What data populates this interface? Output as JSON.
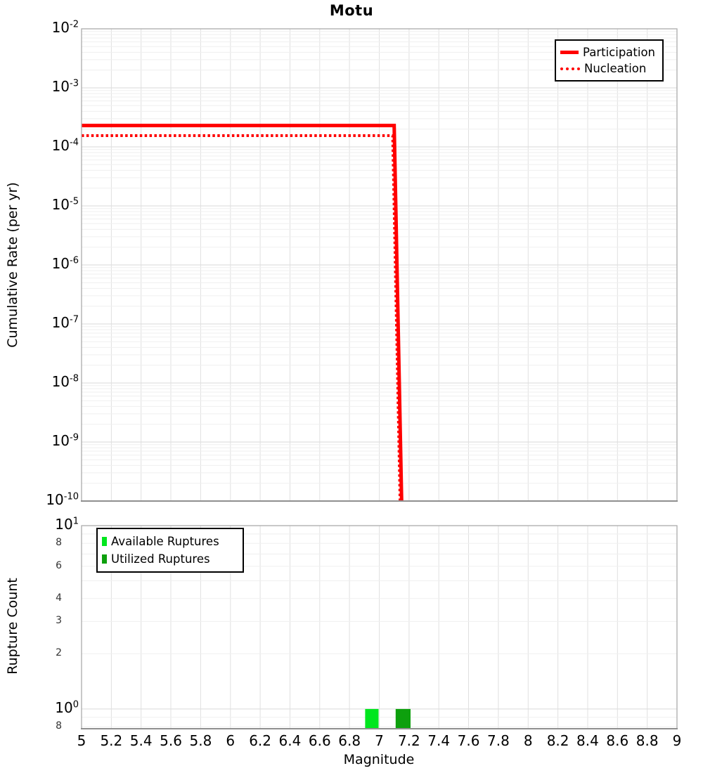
{
  "title": "Motu",
  "x_axis": {
    "label": "Magnitude",
    "min": 5,
    "max": 9,
    "tick_labels": [
      "5",
      "5.2",
      "5.4",
      "5.6",
      "5.8",
      "6",
      "6.2",
      "6.4",
      "6.6",
      "6.8",
      "7",
      "7.2",
      "7.4",
      "7.6",
      "7.8",
      "8",
      "8.2",
      "8.4",
      "8.6",
      "8.8",
      "9"
    ]
  },
  "colors": {
    "line_red": "#ff0000",
    "available_green": "#00e61e",
    "utilized_green": "#0da00d",
    "grid_major": "#e0e0e0",
    "grid_minor": "#efefef",
    "frame": "#ababab",
    "axis_line": "#8f8f8f",
    "legend_border": "#000000",
    "text": "#000000"
  },
  "chart_data": [
    {
      "type": "line",
      "title": "Motu",
      "xlabel": "Magnitude",
      "ylabel": "Cumulative Rate (per yr)",
      "xlim": [
        5,
        9
      ],
      "yscale": "log",
      "ylim": [
        1e-10,
        0.01
      ],
      "ytick_exponents": [
        "-2",
        "-3",
        "-4",
        "-5",
        "-6",
        "-7",
        "-8",
        "-9",
        "-10"
      ],
      "grid": true,
      "legend_position": "top-right",
      "legend": [
        "Participation",
        "Nucleation"
      ],
      "series": [
        {
          "name": "Participation",
          "style": "solid",
          "color": "#ff0000",
          "linewidth": 5,
          "points": [
            [
              5,
              0.00023
            ],
            [
              7.1,
              0.00023
            ],
            [
              7.15,
              1e-10
            ]
          ]
        },
        {
          "name": "Nucleation",
          "style": "dotted",
          "color": "#ff0000",
          "linewidth": 4,
          "points": [
            [
              5,
              0.000155
            ],
            [
              7.09,
              0.000155
            ],
            [
              7.14,
              1e-10
            ]
          ]
        }
      ]
    },
    {
      "type": "bar",
      "xlabel": "Magnitude",
      "ylabel": "Rupture Count",
      "xlim": [
        5,
        9
      ],
      "yscale": "log",
      "ylim": [
        0.78,
        10
      ],
      "grid": true,
      "legend_position": "top-left",
      "legend": [
        "Available Ruptures",
        "Utilized Ruptures"
      ],
      "yticks": [
        {
          "value": 10,
          "mantissa": "10",
          "exponent": "1",
          "major": true
        },
        {
          "value": 8,
          "mantissa": "8",
          "major": false
        },
        {
          "value": 6,
          "mantissa": "6",
          "major": false
        },
        {
          "value": 4,
          "mantissa": "4",
          "major": false
        },
        {
          "value": 3,
          "mantissa": "3",
          "major": false
        },
        {
          "value": 2,
          "mantissa": "2",
          "major": false
        },
        {
          "value": 1,
          "mantissa": "10",
          "exponent": "0",
          "major": true
        },
        {
          "value": 0.8,
          "mantissa": "8",
          "major": false
        }
      ],
      "gridline_values": [
        0.8,
        0.9,
        1,
        2,
        3,
        4,
        5,
        6,
        7,
        8,
        9
      ],
      "series": [
        {
          "name": "Available Ruptures",
          "color": "#00e61e",
          "bars": [
            {
              "center": 6.95,
              "width": 0.09,
              "count": 1
            }
          ]
        },
        {
          "name": "Utilized Ruptures",
          "color": "#0da00d",
          "bars": [
            {
              "center": 7.16,
              "width": 0.1,
              "count": 1
            }
          ]
        }
      ]
    }
  ]
}
